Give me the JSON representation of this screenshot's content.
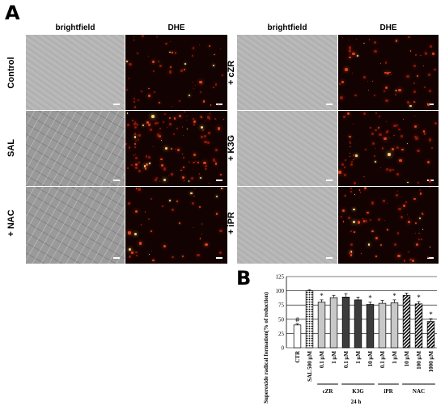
{
  "panel_a": {
    "letter": "A",
    "col_headers": [
      "brightfield",
      "DHE",
      "brightfield",
      "DHE"
    ],
    "left_rows": [
      "Control",
      "SAL",
      "+ NAC"
    ],
    "right_rows": [
      "+ cZR",
      "+ K3G",
      "+ iPR"
    ]
  },
  "panel_b": {
    "letter": "B",
    "time_label": "24 h"
  },
  "chart_data": {
    "type": "bar",
    "ylabel": "Superoxide radical formation(% of reduction)",
    "ylim": [
      0,
      125
    ],
    "yticks": [
      0,
      25,
      50,
      75,
      100,
      125
    ],
    "categories": [
      "CTR",
      "SAL 500 μM",
      "0.1 μM",
      "1 μM",
      "0.1 μM",
      "1 μM",
      "10 μM",
      "0.1 μM",
      "1 μM",
      "10 μM",
      "100 μM",
      "1000 μM"
    ],
    "values": [
      40,
      100,
      80,
      88,
      89,
      84,
      76,
      78,
      79,
      92,
      77,
      46
    ],
    "errors": [
      2,
      2,
      4,
      4,
      6,
      5,
      4,
      5,
      5,
      4,
      4,
      5
    ],
    "fill": [
      "white",
      "dotted",
      "light",
      "light",
      "dark",
      "dark",
      "dark",
      "light",
      "light",
      "hatched",
      "hatched",
      "hatched"
    ],
    "markers": [
      "#",
      "",
      "*",
      "",
      "",
      "",
      "*",
      "",
      "*",
      "",
      "*",
      "*"
    ],
    "groups": [
      {
        "label": "cZR",
        "from": 2,
        "to": 3
      },
      {
        "label": "K3G",
        "from": 4,
        "to": 6
      },
      {
        "label": "iPR",
        "from": 7,
        "to": 8
      },
      {
        "label": "NAC",
        "from": 9,
        "to": 11
      }
    ],
    "xlabel": "24 h",
    "grid": true,
    "colors": {
      "light": "#c8c8c8",
      "dark": "#3c3c3c",
      "edge": "#000000"
    }
  }
}
